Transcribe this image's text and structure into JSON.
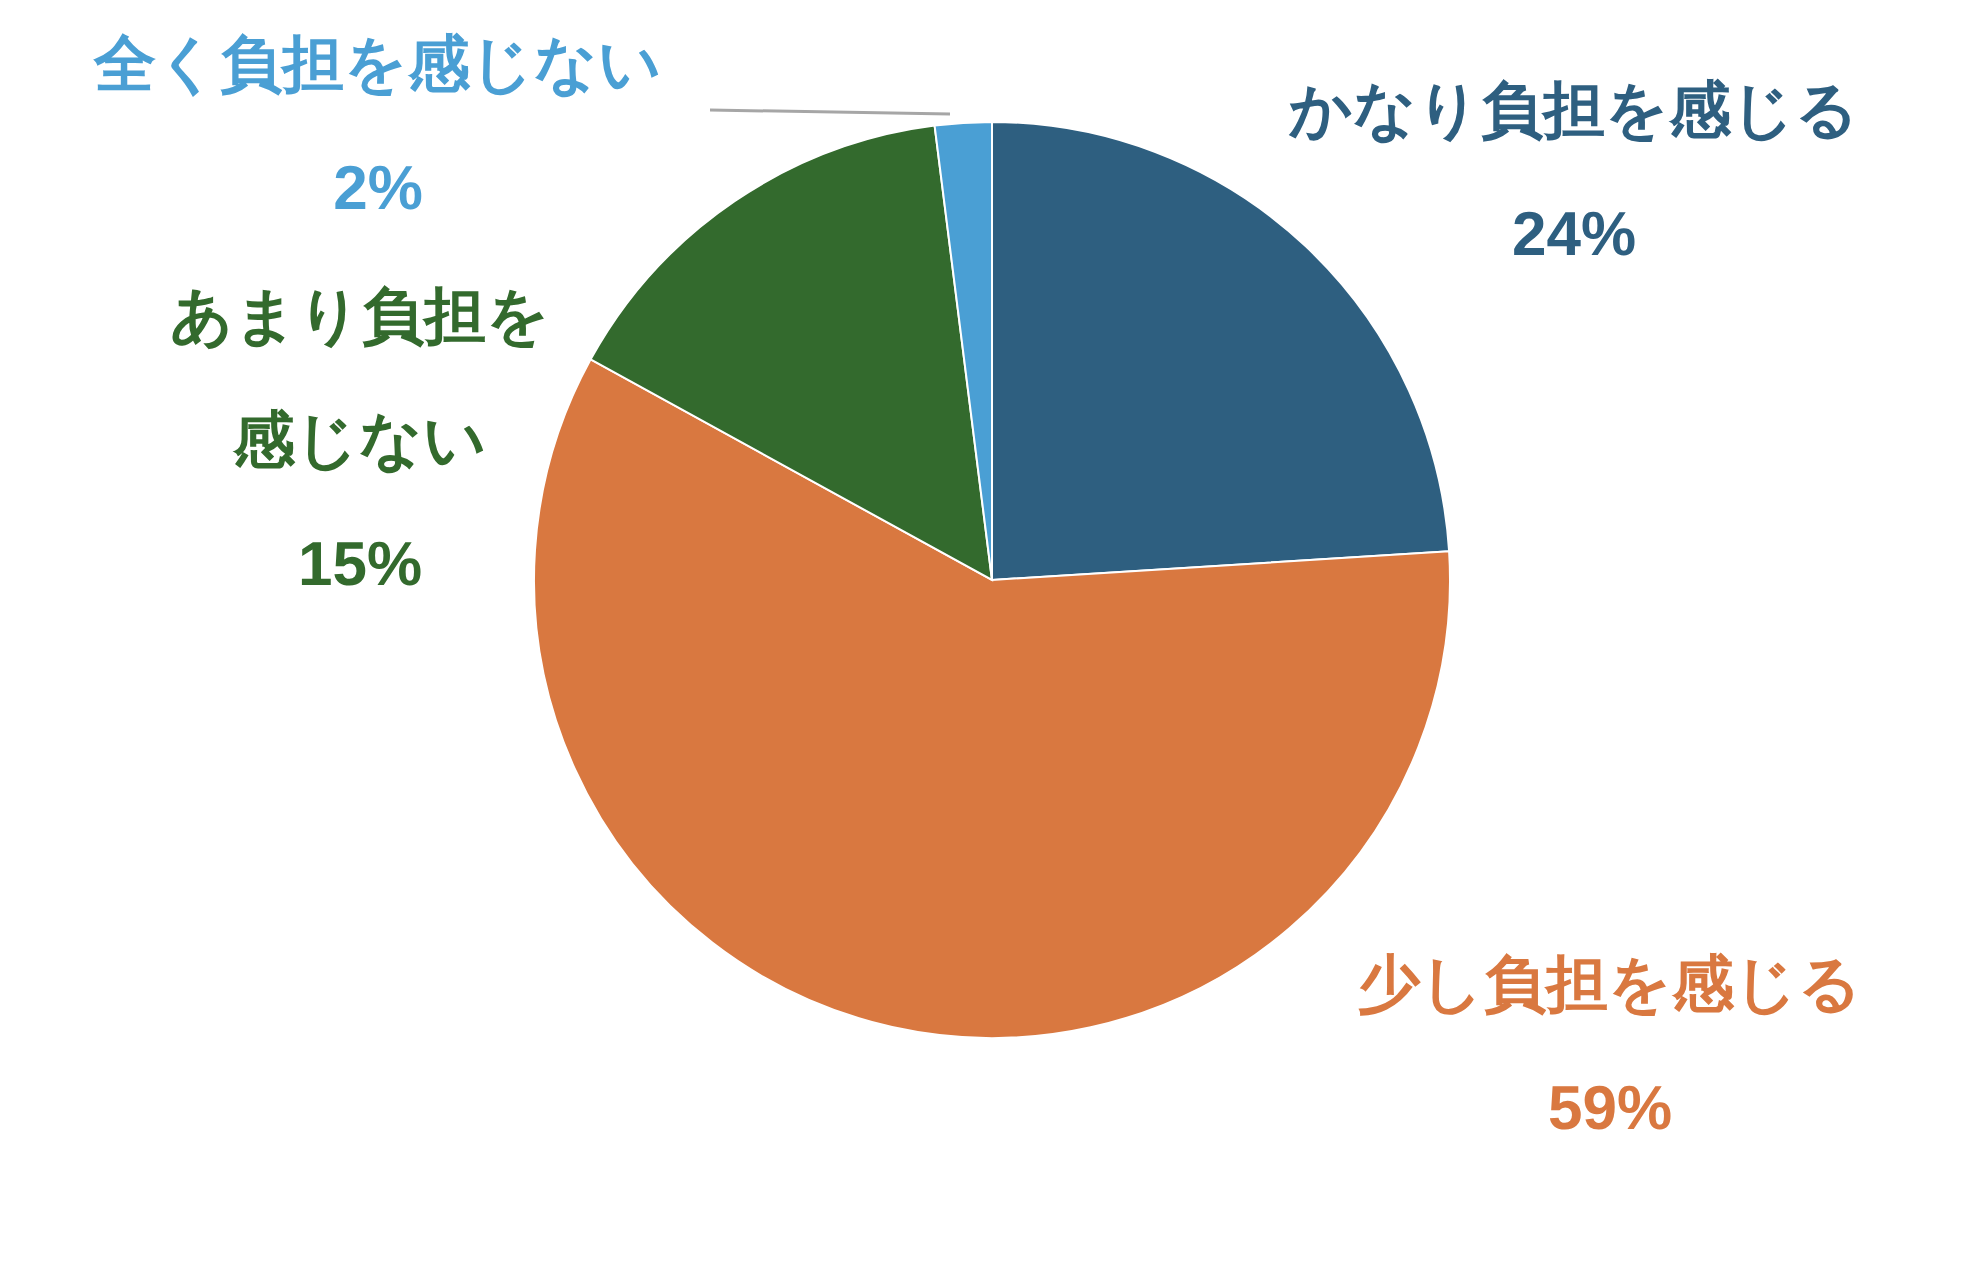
{
  "chart_data": {
    "type": "pie",
    "categories": [
      "かなり負担を感じる",
      "少し負担を感じる",
      "あまり負担を感じない",
      "全く負担を感じない"
    ],
    "values": [
      24,
      59,
      15,
      2
    ],
    "colors": [
      "#2e5f80",
      "#d97840",
      "#336a2d",
      "#4a9fd4"
    ],
    "value_labels": [
      "24%",
      "59%",
      "15%",
      "2%"
    ]
  }
}
